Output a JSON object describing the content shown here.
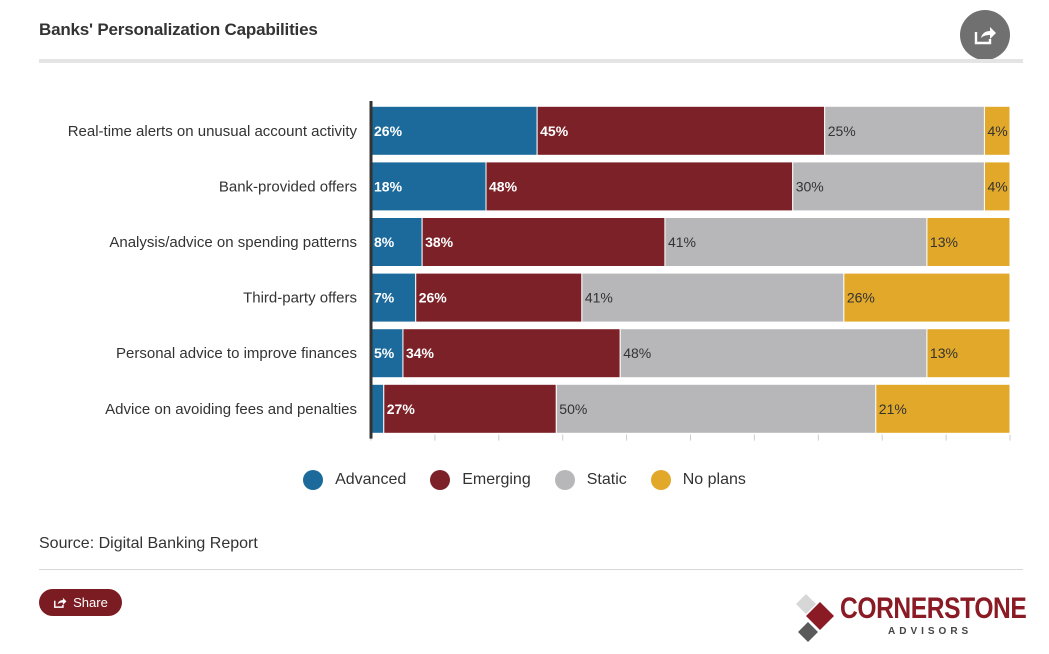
{
  "header": {
    "title": "Banks' Personalization Capabilities"
  },
  "source": {
    "text": "Source:  Digital Banking Report"
  },
  "share_button": {
    "label": "Share"
  },
  "logo": {
    "name": "CORNERSTONE",
    "sub": "ADVISORS"
  },
  "colors": {
    "advanced": "#1b6a9b",
    "emerging": "#7b2127",
    "static": "#b7b7ba",
    "no_plans": "#e1a82a"
  },
  "chart_data": {
    "type": "bar",
    "orientation": "horizontal",
    "stacked": true,
    "categories": [
      "Real-time alerts on unusual account activity",
      "Bank-provided offers",
      "Analysis/advice on spending patterns",
      "Third-party offers",
      "Personal advice to improve finances",
      "Advice on avoiding fees and penalties"
    ],
    "series": [
      {
        "name": "Advanced",
        "values": [
          26,
          18,
          8,
          7,
          5,
          2
        ]
      },
      {
        "name": "Emerging",
        "values": [
          45,
          48,
          38,
          26,
          34,
          27
        ]
      },
      {
        "name": "Static",
        "values": [
          25,
          30,
          41,
          41,
          48,
          50
        ]
      },
      {
        "name": "No plans",
        "values": [
          4,
          4,
          13,
          26,
          13,
          21
        ]
      }
    ],
    "data_labels": [
      [
        "26%",
        "45%",
        "25%",
        "4%"
      ],
      [
        "18%",
        "48%",
        "30%",
        "4%"
      ],
      [
        "8%",
        "38%",
        "41%",
        "13%"
      ],
      [
        "7%",
        "26%",
        "41%",
        "26%"
      ],
      [
        "5%",
        "34%",
        "48%",
        "13%"
      ],
      [
        "",
        "27%",
        "50%",
        "21%"
      ]
    ],
    "xlim": [
      0,
      100
    ],
    "legend_position": "bottom"
  }
}
